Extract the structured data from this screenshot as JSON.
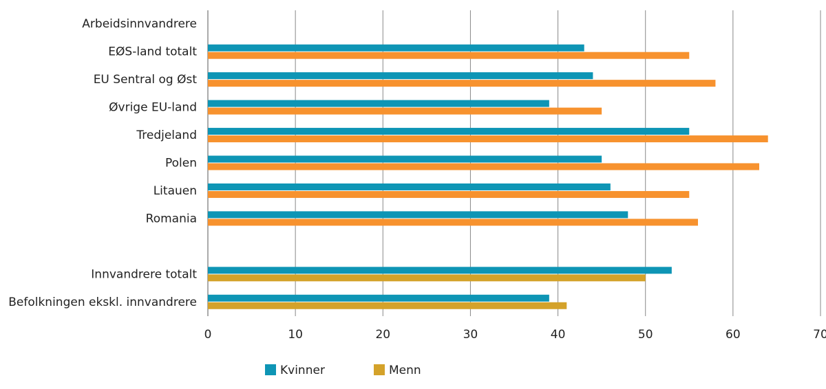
{
  "chart_data": {
    "type": "hbar",
    "categories": [
      "Arbeidsinnvandrere",
      "EØS-land totalt",
      "EU Sentral og Øst",
      "Øvrige EU-land",
      "Tredjeland",
      "Polen",
      "Litauen",
      "Romania",
      null,
      "Innvandrere totalt",
      "Befolkningen ekskl. innvandrere"
    ],
    "series": [
      {
        "name": "Kvinner",
        "color": "#0e95b5",
        "values": [
          null,
          43,
          44,
          39,
          55,
          45,
          46,
          48,
          null,
          53,
          39
        ]
      },
      {
        "name": "Menn",
        "color": "#d4a22a",
        "colors": [
          null,
          "#f7922e",
          "#f7922e",
          "#f7922e",
          "#f7922e",
          "#f7922e",
          "#f7922e",
          "#f7922e",
          null,
          "#d4a22a",
          "#d4a22a"
        ],
        "values": [
          null,
          55,
          58,
          45,
          64,
          63,
          55,
          56,
          null,
          50,
          41
        ]
      }
    ],
    "xlim": [
      0,
      70
    ],
    "xticks": [
      0,
      10,
      20,
      30,
      40,
      50,
      60,
      70
    ],
    "grid": true,
    "legend": "bottom"
  }
}
